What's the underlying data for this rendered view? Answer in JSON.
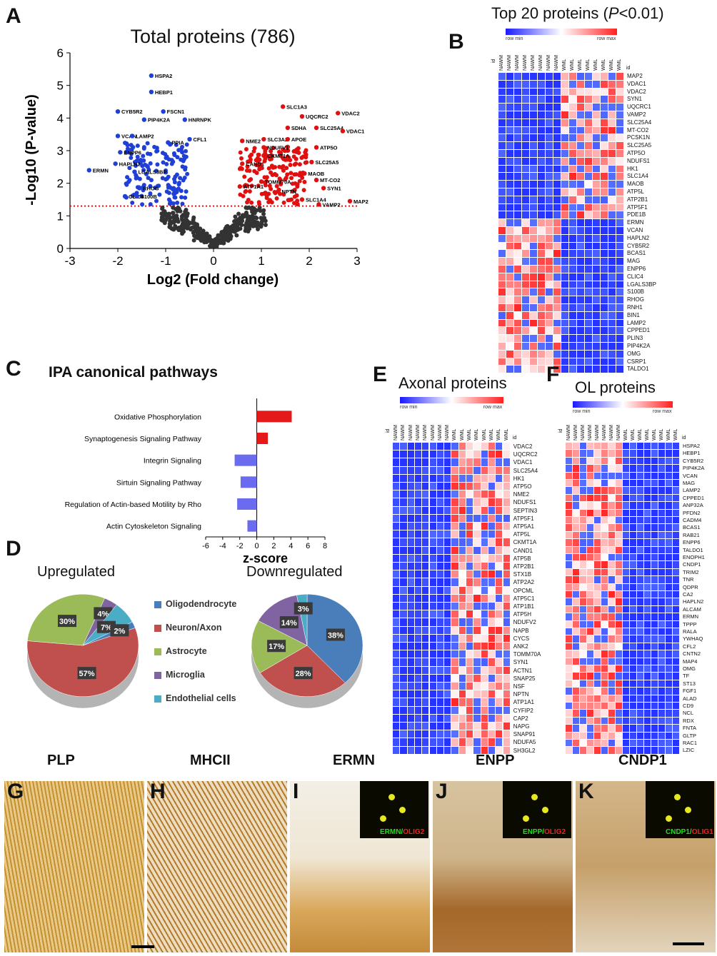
{
  "panels": {
    "A": "A",
    "B": "B",
    "C": "C",
    "D": "D",
    "E": "E",
    "F": "F",
    "G": "G",
    "H": "H",
    "I": "I",
    "J": "J",
    "K": "K"
  },
  "chart_data": [
    {
      "type": "scatter",
      "title": "Total proteins (786)",
      "xlabel": "Log2 (Fold change)",
      "ylabel": "-Log10 (P-value)",
      "xlim": [
        -3,
        3
      ],
      "ylim": [
        0,
        6
      ],
      "xticks": [
        "-3",
        "-2",
        "-1",
        "0",
        "1",
        "2",
        "3"
      ],
      "yticks": [
        "0",
        "1",
        "2",
        "3",
        "4",
        "5",
        "6"
      ],
      "threshold": 1.3,
      "down_labels": [
        {
          "name": "HSPA2",
          "x": -1.3,
          "y": 5.3
        },
        {
          "name": "HEBP1",
          "x": -1.3,
          "y": 4.8
        },
        {
          "name": "CYB5R2",
          "x": -2.0,
          "y": 4.2
        },
        {
          "name": "FSCN1",
          "x": -1.05,
          "y": 4.2
        },
        {
          "name": "PIP4K2A",
          "x": -1.45,
          "y": 3.95
        },
        {
          "name": "HNRNPK",
          "x": -0.6,
          "y": 3.95
        },
        {
          "name": "VCAN",
          "x": -2.0,
          "y": 3.45
        },
        {
          "name": "LAMP2",
          "x": -1.7,
          "y": 3.45
        },
        {
          "name": "PPIA",
          "x": -0.95,
          "y": 3.25
        },
        {
          "name": "CFL1",
          "x": -0.5,
          "y": 3.35
        },
        {
          "name": "ENPP6",
          "x": -1.95,
          "y": 2.95
        },
        {
          "name": "HAPLN2",
          "x": -2.05,
          "y": 2.6
        },
        {
          "name": "ERMN",
          "x": -2.6,
          "y": 2.4
        },
        {
          "name": "LGALS3BP",
          "x": -1.65,
          "y": 2.35
        },
        {
          "name": "RHOG",
          "x": -1.55,
          "y": 1.85
        },
        {
          "name": "CLIC4",
          "x": -1.85,
          "y": 1.6
        },
        {
          "name": "S100B",
          "x": -1.6,
          "y": 1.6
        }
      ],
      "up_labels": [
        {
          "name": "SLC1A3",
          "x": 1.45,
          "y": 4.35
        },
        {
          "name": "VDAC2",
          "x": 2.6,
          "y": 4.15
        },
        {
          "name": "UQCRC2",
          "x": 1.85,
          "y": 4.05
        },
        {
          "name": "SDHA",
          "x": 1.55,
          "y": 3.7
        },
        {
          "name": "SLC25A4",
          "x": 2.15,
          "y": 3.7
        },
        {
          "name": "VDAC1",
          "x": 2.7,
          "y": 3.6
        },
        {
          "name": "SLC3A2",
          "x": 1.05,
          "y": 3.35
        },
        {
          "name": "APOE",
          "x": 1.55,
          "y": 3.35
        },
        {
          "name": "NME2",
          "x": 0.6,
          "y": 3.3
        },
        {
          "name": "NDUFV1",
          "x": 1.05,
          "y": 3.1
        },
        {
          "name": "ATP5O",
          "x": 2.15,
          "y": 3.1
        },
        {
          "name": "CKMT1A",
          "x": 1.05,
          "y": 2.85
        },
        {
          "name": "CAND1",
          "x": 0.6,
          "y": 2.6
        },
        {
          "name": "SLC25A5",
          "x": 2.05,
          "y": 2.65
        },
        {
          "name": "MAOB",
          "x": 1.9,
          "y": 2.3
        },
        {
          "name": "TOMM70A",
          "x": 1.0,
          "y": 2.05
        },
        {
          "name": "MT-CO2",
          "x": 2.15,
          "y": 2.1
        },
        {
          "name": "ATP1A1",
          "x": 0.55,
          "y": 1.9
        },
        {
          "name": "NPTN",
          "x": 1.35,
          "y": 1.75
        },
        {
          "name": "SYN1",
          "x": 2.3,
          "y": 1.85
        },
        {
          "name": "SLC1A4",
          "x": 1.85,
          "y": 1.5
        },
        {
          "name": "VAMP2",
          "x": 2.2,
          "y": 1.35
        },
        {
          "name": "MAP2",
          "x": 2.85,
          "y": 1.45
        }
      ]
    },
    {
      "type": "bar",
      "title": "IPA canonical pathways",
      "xlabel": "z-score",
      "xlim": [
        -6,
        8
      ],
      "xticks": [
        "-6",
        "-4",
        "-2",
        "0",
        "2",
        "4",
        "6",
        "8"
      ],
      "categories": [
        "Oxidative Phosphorylation",
        "Synaptogenesis Signaling Pathway",
        "Integrin Signaling",
        "Sirtuin Signaling Pathway",
        "Regulation of Actin-based Motility by Rho",
        "Actin Cytoskeleton Signaling"
      ],
      "values": [
        4.1,
        1.3,
        -2.6,
        -1.9,
        -2.3,
        -1.1
      ],
      "colors": [
        "#e41a1a",
        "#e41a1a",
        "#6b6bf0",
        "#6b6bf0",
        "#6b6bf0",
        "#6b6bf0"
      ]
    },
    {
      "type": "pie",
      "title": "Upregulated",
      "labels": [
        "Neuron/Axon",
        "Astrocyte",
        "Microglia",
        "Endothelial cells",
        "Oligodendrocyte"
      ],
      "values": [
        57,
        30,
        4,
        7,
        2
      ],
      "value_labels": [
        "57%",
        "30%",
        "4%",
        "7%",
        "2%"
      ]
    },
    {
      "type": "pie",
      "title": "Downregulated",
      "labels": [
        "Oligodendrocyte",
        "Neuron/Axon",
        "Astrocyte",
        "Microglia",
        "Endothelial cells"
      ],
      "values": [
        38,
        28,
        17,
        14,
        3
      ],
      "value_labels": [
        "38%",
        "28%",
        "17%",
        "14%",
        "3%"
      ]
    }
  ],
  "pie_legend": [
    {
      "label": "Oligodendrocyte",
      "color": "#4a7ebb"
    },
    {
      "label": "Neuron/Axon",
      "color": "#c0504d"
    },
    {
      "label": "Astrocyte",
      "color": "#9bbb59"
    },
    {
      "label": "Microglia",
      "color": "#8064a2"
    },
    {
      "label": "Endothelial cells",
      "color": "#4bacc6"
    }
  ],
  "heatmap_B": {
    "title_pre": "Top 20 proteins (",
    "title_p": "P",
    "title_post": "<0.01)",
    "row_min": "row min",
    "row_max": "row max",
    "id": "id",
    "col_a": "NAWM",
    "col_b": "WML",
    "rows": [
      "MAP2",
      "VDAC1",
      "VDAC2",
      "SYN1",
      "UQCRC1",
      "VAMP2",
      "SLC25A4",
      "MT-CO2",
      "PCSK1N",
      "SLC25A5",
      "ATP5O",
      "NDUFS1",
      "HK1",
      "SLC1A4",
      "MAOB",
      "ATP5L",
      "ATP2B1",
      "ATP5F1",
      "PDE1B",
      "ERMN",
      "VCAN",
      "HAPLN2",
      "CYB5R2",
      "BCAS1",
      "MAG",
      "ENPP6",
      "CLIC4",
      "LGALS3BP",
      "S100B",
      "RHOG",
      "RNH1",
      "BIN1",
      "LAMP2",
      "CPPED1",
      "PLIN3",
      "PIP4K2A",
      "OMG",
      "CSRP1",
      "TALDO1"
    ]
  },
  "heatmap_E": {
    "title": "Axonal proteins",
    "row_min": "row min",
    "row_max": "row max",
    "id": "id",
    "col_a": "NAWM",
    "col_b": "WML",
    "rows": [
      "VDAC2",
      "UQCRC2",
      "VDAC1",
      "SLC25A4",
      "HK1",
      "ATP5O",
      "NME2",
      "NDUFS1",
      "SEPTIN3",
      "ATP5F1",
      "ATP5A1",
      "ATP5L",
      "CKMT1A",
      "CAND1",
      "ATP5B",
      "ATP2B1",
      "STX1B",
      "ATP2A2",
      "OPCML",
      "ATP5C1",
      "ATP1B1",
      "ATP5H",
      "NDUFV2",
      "NAPB",
      "CYCS",
      "ANK2",
      "TOMM70A",
      "SYN1",
      "ACTN1",
      "SNAP25",
      "NSF",
      "NPTN",
      "ATP1A1",
      "CYFIP2",
      "CAP2",
      "NAPG",
      "SNAP91",
      "NDUFA5",
      "SH3GL2"
    ]
  },
  "heatmap_F": {
    "title": "OL proteins",
    "row_min": "row min",
    "row_max": "row max",
    "id": "id",
    "col_a": "NAWM",
    "col_b": "WML",
    "rows": [
      "HSPA2",
      "HEBP1",
      "CYB5R2",
      "PIP4K2A",
      "VCAN",
      "MAG",
      "LAMP2",
      "CPPED1",
      "ANP32A",
      "PFDN2",
      "CADM4",
      "BCAS1",
      "RAB21",
      "ENPP6",
      "TALDO1",
      "ENOPH1",
      "CNDP1",
      "TRIM2",
      "TNR",
      "QDPR",
      "CA2",
      "HAPLN2",
      "ALCAM",
      "ERMN",
      "TPPP",
      "RALA",
      "YWHAQ",
      "CFL2",
      "CNTN2",
      "MAP4",
      "OMG",
      "TF",
      "ST13",
      "FGF1",
      "ALAD",
      "CD9",
      "NCL",
      "RDX",
      "FNTA",
      "GLTP",
      "RAC1",
      "LZIC"
    ]
  },
  "micrographs": [
    {
      "label": "G",
      "title": "PLP"
    },
    {
      "label": "H",
      "title": "MHCII"
    },
    {
      "label": "I",
      "title": "ERMN",
      "inset_a": "ERMN",
      "inset_b": "OLIG2"
    },
    {
      "label": "J",
      "title": "ENPP",
      "inset_a": "ENPP",
      "inset_b": "OLIG2"
    },
    {
      "label": "K",
      "title": "CNDP1",
      "inset_a": "CNDP1",
      "inset_b": "OLIG1"
    }
  ],
  "colors": {
    "down": "#1f3fd6",
    "up": "#e01010",
    "ns": "#333333",
    "threshold": "#e01010"
  }
}
